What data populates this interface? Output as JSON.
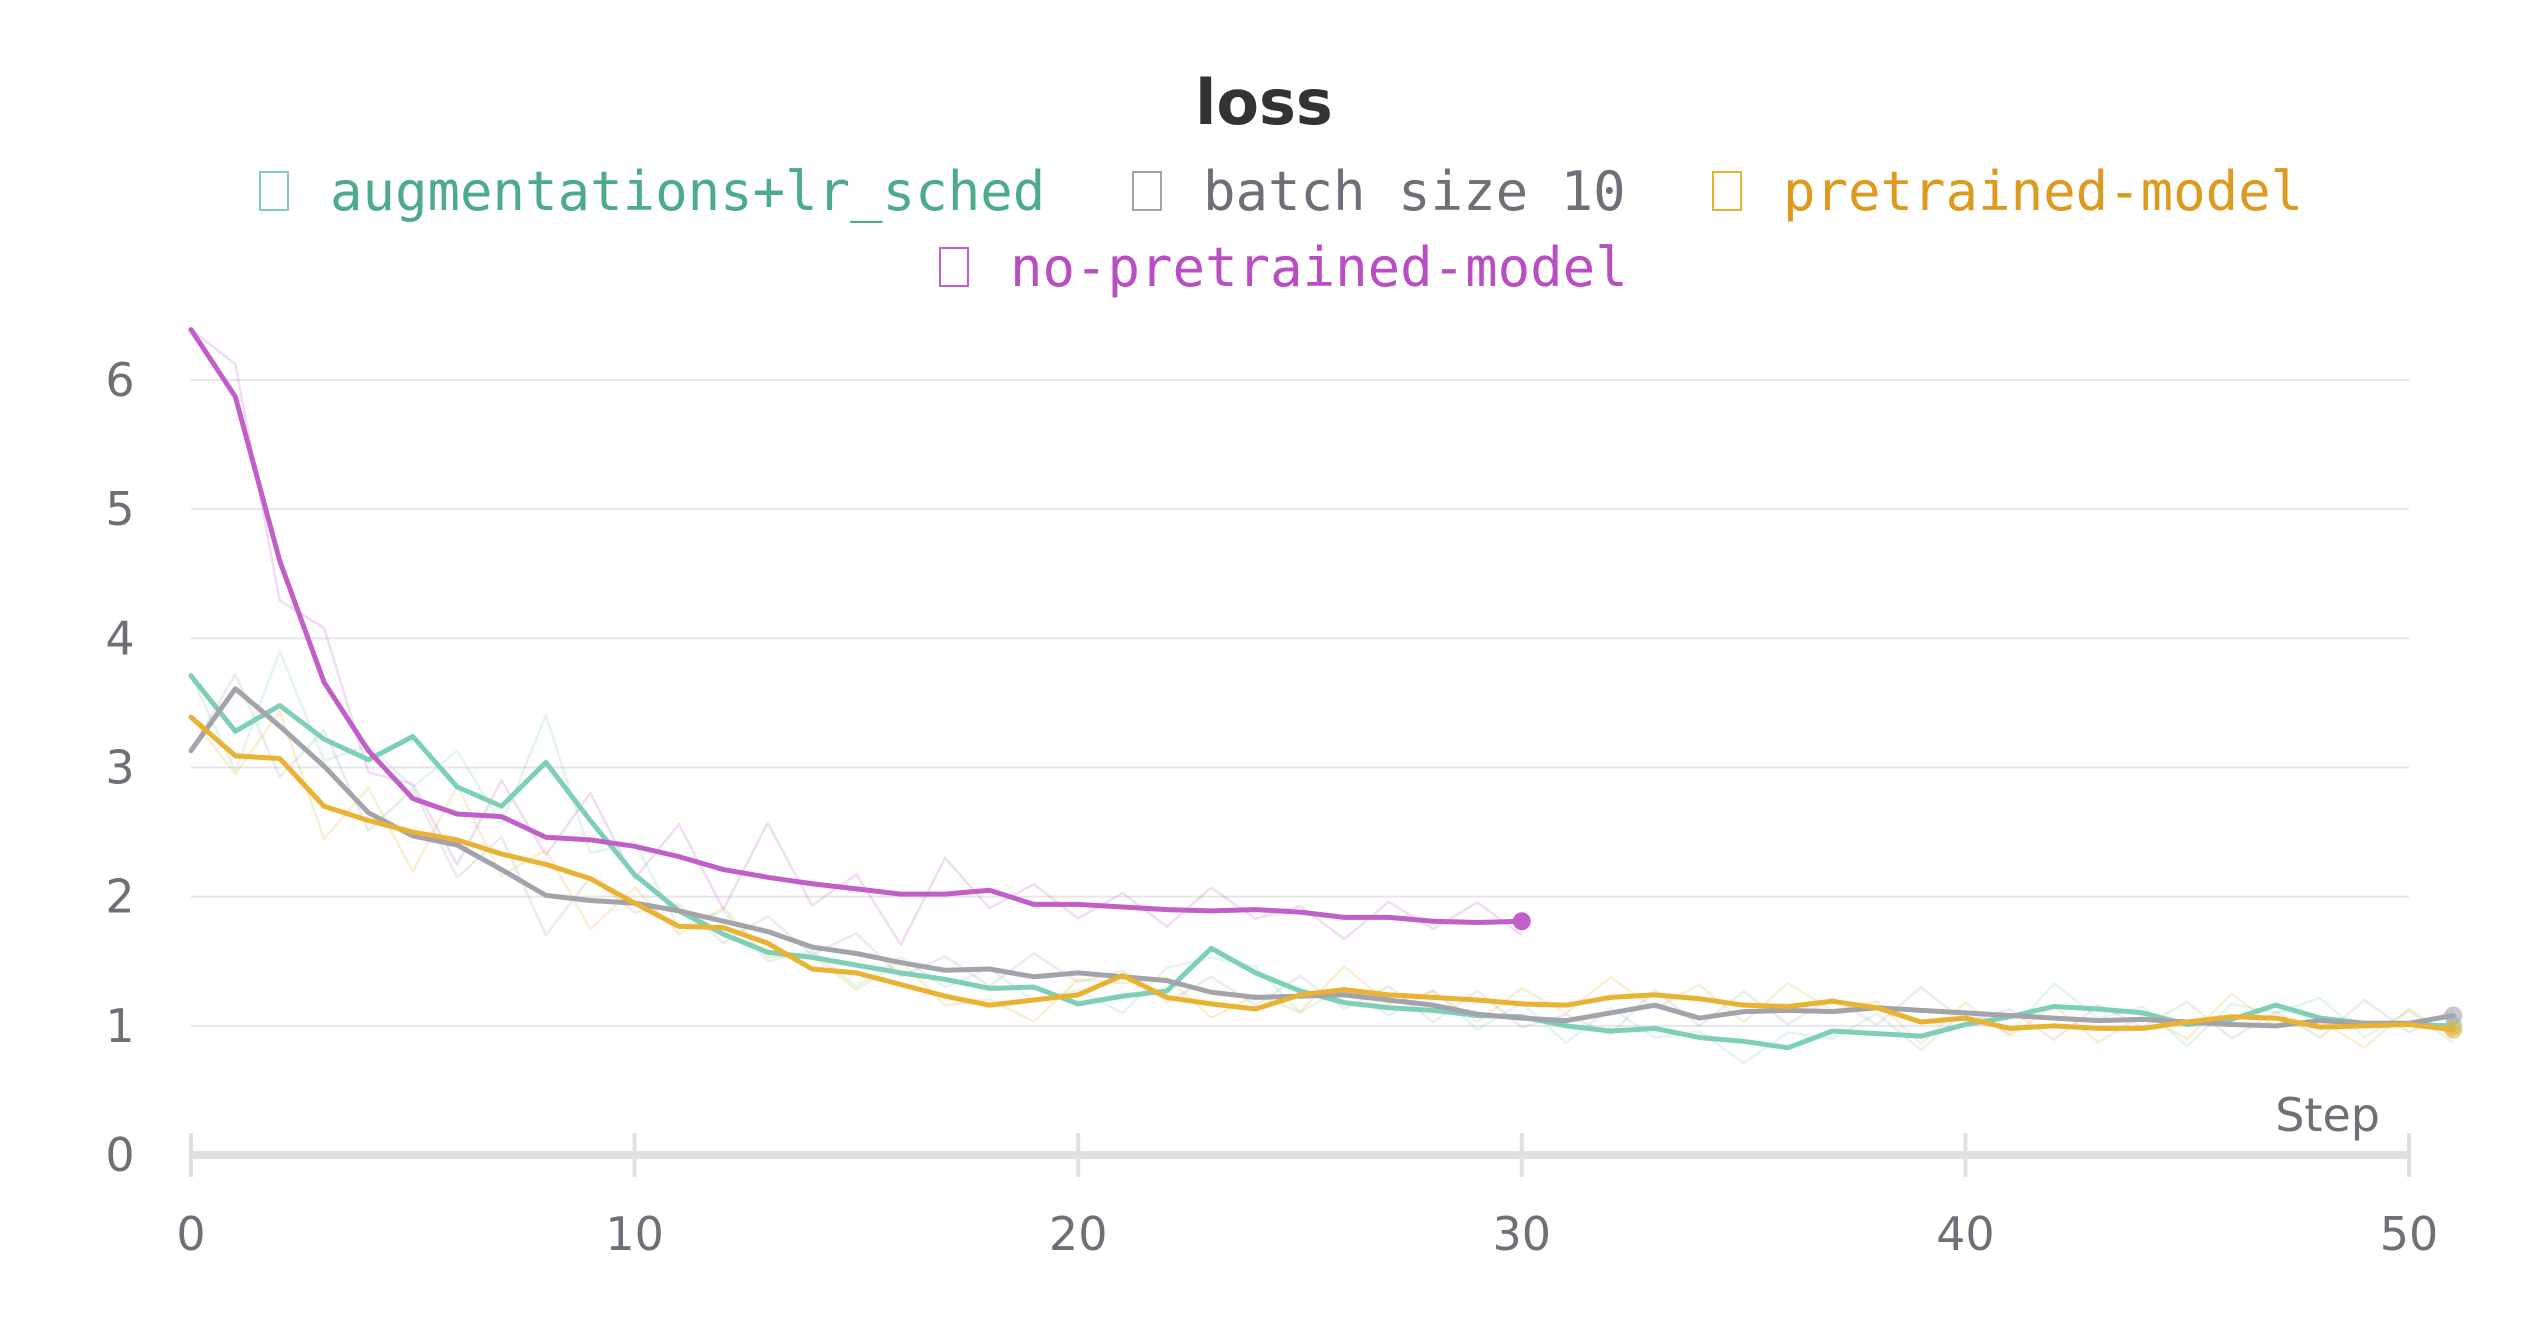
{
  "chart_data": {
    "type": "line",
    "title": "loss",
    "xlabel": "Step",
    "ylabel": "",
    "xlim": [
      0,
      51
    ],
    "ylim": [
      0,
      6.4
    ],
    "xticks": [
      0,
      10,
      20,
      30,
      40,
      50
    ],
    "yticks": [
      0,
      1,
      2,
      3,
      4,
      5,
      6
    ],
    "grid": true,
    "legend_position": "top",
    "series": [
      {
        "name": "augmentations+lr_sched",
        "color": "#7ecfb7",
        "x": [
          0,
          1,
          2,
          3,
          4,
          5,
          6,
          7,
          8,
          9,
          10,
          11,
          12,
          13,
          14,
          15,
          16,
          17,
          18,
          19,
          20,
          21,
          22,
          23,
          24,
          25,
          26,
          27,
          28,
          29,
          30,
          31,
          32,
          33,
          34,
          35,
          36,
          37,
          38,
          39,
          40,
          41,
          42,
          43,
          44,
          45,
          46,
          47,
          48,
          49,
          50,
          51
        ],
        "y": [
          3.71,
          3.28,
          3.48,
          3.22,
          3.06,
          3.24,
          2.85,
          2.7,
          3.04,
          2.59,
          2.17,
          1.89,
          1.71,
          1.57,
          1.53,
          1.47,
          1.41,
          1.36,
          1.29,
          1.3,
          1.17,
          1.23,
          1.27,
          1.6,
          1.41,
          1.27,
          1.18,
          1.14,
          1.12,
          1.08,
          1.07,
          1.0,
          0.96,
          0.98,
          0.91,
          0.88,
          0.83,
          0.96,
          0.94,
          0.92,
          1.01,
          1.07,
          1.15,
          1.13,
          1.1,
          1.01,
          1.05,
          1.16,
          1.06,
          1.02,
          1.01,
          1.0
        ]
      },
      {
        "name": "batch size 10",
        "color": "#a3a3ab",
        "x": [
          0,
          1,
          2,
          3,
          4,
          5,
          6,
          7,
          8,
          9,
          10,
          11,
          12,
          13,
          14,
          15,
          16,
          17,
          18,
          19,
          20,
          21,
          22,
          23,
          24,
          25,
          26,
          27,
          28,
          29,
          30,
          31,
          32,
          33,
          34,
          35,
          36,
          37,
          38,
          39,
          40,
          41,
          42,
          43,
          44,
          45,
          46,
          47,
          48,
          49,
          50,
          51
        ],
        "y": [
          3.13,
          3.61,
          3.32,
          3.01,
          2.65,
          2.47,
          2.4,
          2.21,
          2.01,
          1.97,
          1.95,
          1.89,
          1.81,
          1.73,
          1.61,
          1.56,
          1.49,
          1.43,
          1.44,
          1.38,
          1.41,
          1.38,
          1.35,
          1.26,
          1.22,
          1.23,
          1.24,
          1.2,
          1.16,
          1.09,
          1.06,
          1.04,
          1.1,
          1.16,
          1.06,
          1.11,
          1.12,
          1.11,
          1.14,
          1.12,
          1.1,
          1.08,
          1.06,
          1.04,
          1.05,
          1.03,
          1.01,
          1.0,
          1.04,
          1.02,
          1.02,
          1.08
        ]
      },
      {
        "name": "pretrained-model",
        "color": "#e9b232",
        "legend_color": "#dc9a1e",
        "x": [
          0,
          1,
          2,
          3,
          4,
          5,
          6,
          7,
          8,
          9,
          10,
          11,
          12,
          13,
          14,
          15,
          16,
          17,
          18,
          19,
          20,
          21,
          22,
          23,
          24,
          25,
          26,
          27,
          28,
          29,
          30,
          31,
          32,
          33,
          34,
          35,
          36,
          37,
          38,
          39,
          40,
          41,
          42,
          43,
          44,
          45,
          46,
          47,
          48,
          49,
          50,
          51
        ],
        "y": [
          3.39,
          3.09,
          3.07,
          2.7,
          2.59,
          2.5,
          2.44,
          2.33,
          2.25,
          2.14,
          1.95,
          1.77,
          1.76,
          1.64,
          1.44,
          1.41,
          1.32,
          1.23,
          1.16,
          1.2,
          1.24,
          1.39,
          1.22,
          1.17,
          1.13,
          1.24,
          1.28,
          1.24,
          1.22,
          1.2,
          1.17,
          1.16,
          1.22,
          1.24,
          1.21,
          1.16,
          1.15,
          1.19,
          1.14,
          1.03,
          1.06,
          0.98,
          1.0,
          0.98,
          0.98,
          1.03,
          1.07,
          1.06,
          0.99,
          1.0,
          1.01,
          0.97
        ]
      },
      {
        "name": "no-pretrained-model",
        "color": "#c15fc9",
        "x": [
          0,
          1,
          2,
          3,
          4,
          5,
          6,
          7,
          8,
          9,
          10,
          11,
          12,
          13,
          14,
          15,
          16,
          17,
          18,
          19,
          20,
          21,
          22,
          23,
          24,
          25,
          26,
          27,
          28,
          29,
          30
        ],
        "y": [
          6.39,
          5.87,
          4.6,
          3.66,
          3.13,
          2.76,
          2.64,
          2.62,
          2.46,
          2.44,
          2.39,
          2.31,
          2.21,
          2.15,
          2.1,
          2.06,
          2.02,
          2.02,
          2.05,
          1.94,
          1.94,
          1.92,
          1.9,
          1.89,
          1.9,
          1.88,
          1.84,
          1.84,
          1.81,
          1.8,
          1.81
        ]
      }
    ]
  }
}
